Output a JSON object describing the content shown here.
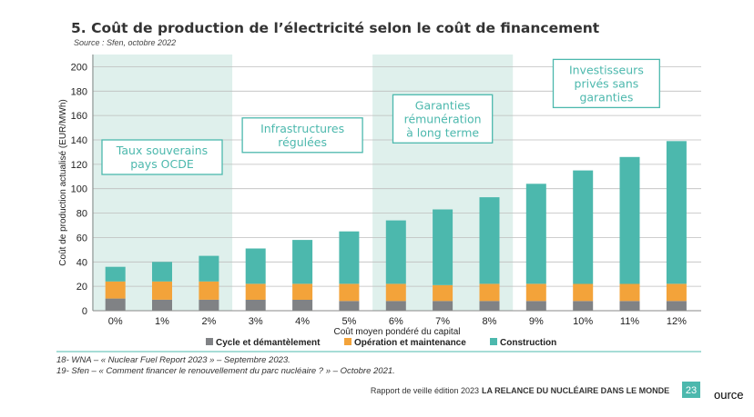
{
  "chart_data": {
    "type": "bar",
    "stacked": true,
    "title": "5. Coût de production de l’électricité selon le coût de financement",
    "subtitle": "Source : Sfen, octobre 2022",
    "xlabel": "Coût moyen pondéré du capital",
    "ylabel": "Coût de production actualisé (EUR/MWh)",
    "ylim": [
      0,
      210
    ],
    "yticks": [
      "0",
      "20",
      "40",
      "60",
      "80",
      "100",
      "120",
      "140",
      "160",
      "180",
      "200"
    ],
    "categories": [
      "0%",
      "1%",
      "2%",
      "3%",
      "4%",
      "5%",
      "6%",
      "7%",
      "8%",
      "9%",
      "10%",
      "11%",
      "12%"
    ],
    "grid": true,
    "legend_position": "bottom",
    "series": [
      {
        "name": "Cycle et démantèlement",
        "color": "#808285",
        "values": [
          10,
          9,
          9,
          9,
          9,
          8,
          8,
          8,
          8,
          8,
          8,
          8,
          8
        ]
      },
      {
        "name": "Opération et maintenance",
        "color": "#f3a33a",
        "values": [
          14,
          15,
          15,
          13,
          13,
          14,
          14,
          13,
          14,
          14,
          14,
          14,
          14
        ]
      },
      {
        "name": "Construction",
        "color": "#4cb8ad",
        "values": [
          12,
          16,
          21,
          29,
          36,
          43,
          52,
          62,
          71,
          82,
          93,
          104,
          117
        ]
      }
    ],
    "bands": [
      {
        "label_lines": [
          "Taux souverains",
          "pays OCDE"
        ],
        "from_index": 0,
        "to_index": 2,
        "shaded": true,
        "label_y": 140
      },
      {
        "label_lines": [
          "Infrastructures",
          "régulées"
        ],
        "from_index": 3,
        "to_index": 5,
        "shaded": false,
        "label_y": 158
      },
      {
        "label_lines": [
          "Garanties",
          "rémunération",
          "à long terme"
        ],
        "from_index": 6,
        "to_index": 8,
        "shaded": true,
        "label_y": 177
      },
      {
        "label_lines": [
          "Investisseurs",
          "privés sans",
          "garanties"
        ],
        "from_index": 9,
        "to_index": 12,
        "shaded": false,
        "label_y": 206
      }
    ]
  },
  "footnotes": [
    "18- WNA – « Nuclear Fuel Report 2023 » – Septembre 2023.",
    "19- Sfen – « Comment financer le renouvellement du parc nucléaire ? » – Octobre 2021."
  ],
  "footer": {
    "report_label": "Rapport de veille édition 2023",
    "report_title": "LA RELANCE DU NUCLÉAIRE DANS LE MONDE",
    "page_number": "23"
  },
  "edge_text": "ource",
  "colors": {
    "teal": "#4cb8ad",
    "band_fill": "#dff0ec",
    "grid": "#bdbdbd",
    "title": "#333333"
  }
}
